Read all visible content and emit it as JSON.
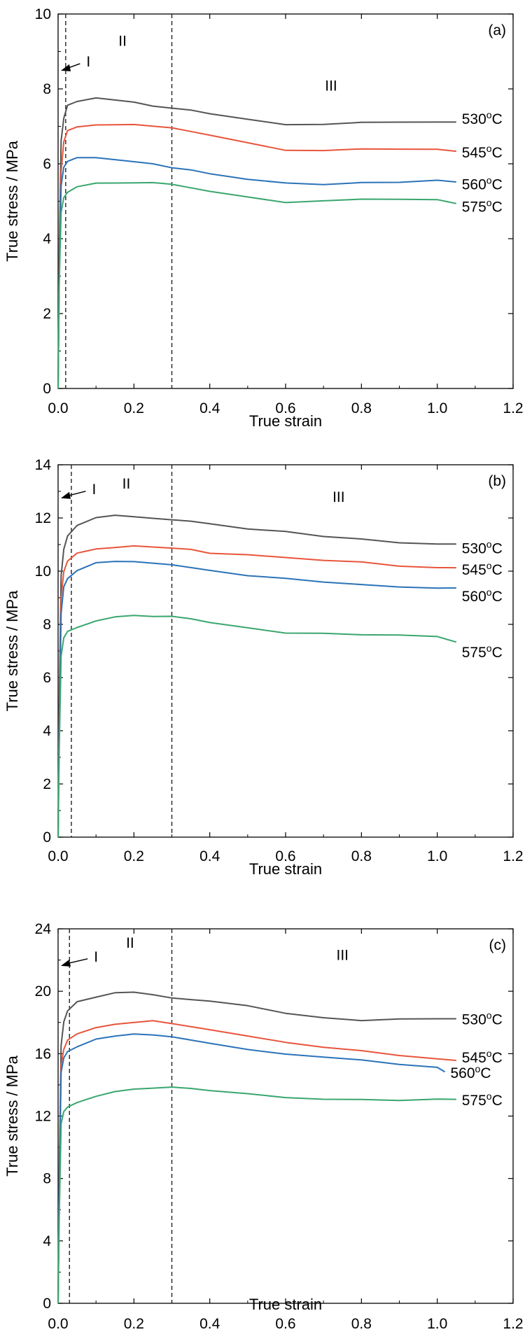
{
  "chart_data": [
    {
      "type": "line",
      "panel_label": "(a)",
      "xlabel": "True strain",
      "ylabel": "True stress / MPa",
      "xlim": [
        0,
        1.2
      ],
      "ylim": [
        0,
        10
      ],
      "xticks": [
        "0.0",
        "0.2",
        "0.4",
        "0.6",
        "0.8",
        "1.0",
        "1.2"
      ],
      "yticks": [
        "0",
        "2",
        "4",
        "6",
        "8",
        "10"
      ],
      "region_lines": [
        0.02,
        0.3
      ],
      "region_labels": [
        {
          "text": "I",
          "x": 0.08,
          "y": 8.6,
          "arrow": true
        },
        {
          "text": "II",
          "x": 0.17,
          "y": 9.15
        },
        {
          "text": "III",
          "x": 0.72,
          "y": 7.95
        }
      ],
      "series": [
        {
          "temp": "530",
          "unit": "C",
          "color": "#555555",
          "x": [
            0,
            0.003,
            0.008,
            0.015,
            0.025,
            0.05,
            0.1,
            0.15,
            0.2,
            0.25,
            0.3,
            0.35,
            0.4,
            0.5,
            0.6,
            0.7,
            0.8,
            0.9,
            1.0,
            1.05
          ],
          "y": [
            0,
            3.5,
            6.6,
            7.2,
            7.55,
            7.65,
            7.75,
            7.7,
            7.65,
            7.55,
            7.5,
            7.45,
            7.35,
            7.2,
            7.05,
            7.05,
            7.1,
            7.1,
            7.1,
            7.1
          ],
          "label_y": 7.2
        },
        {
          "temp": "545",
          "unit": "C",
          "color": "#e8553c",
          "x": [
            0,
            0.003,
            0.008,
            0.015,
            0.025,
            0.05,
            0.1,
            0.15,
            0.2,
            0.25,
            0.3,
            0.35,
            0.4,
            0.5,
            0.6,
            0.7,
            0.8,
            0.9,
            1.0,
            1.05
          ],
          "y": [
            0,
            3.2,
            5.8,
            6.6,
            6.9,
            7.0,
            7.05,
            7.05,
            7.05,
            7.0,
            6.95,
            6.85,
            6.75,
            6.55,
            6.35,
            6.35,
            6.4,
            6.4,
            6.4,
            6.35
          ],
          "label_y": 6.3
        },
        {
          "temp": "560",
          "unit": "C",
          "color": "#2b73b8",
          "x": [
            0,
            0.003,
            0.008,
            0.015,
            0.025,
            0.05,
            0.1,
            0.15,
            0.2,
            0.25,
            0.3,
            0.35,
            0.4,
            0.5,
            0.6,
            0.7,
            0.8,
            0.9,
            1.0,
            1.05
          ],
          "y": [
            0,
            3.0,
            5.4,
            5.9,
            6.05,
            6.15,
            6.15,
            6.1,
            6.05,
            6.0,
            5.9,
            5.85,
            5.75,
            5.6,
            5.5,
            5.45,
            5.5,
            5.5,
            5.55,
            5.5
          ],
          "label_y": 5.45
        },
        {
          "temp": "575",
          "unit": "C",
          "color": "#3aa66e",
          "x": [
            0,
            0.003,
            0.008,
            0.015,
            0.025,
            0.05,
            0.1,
            0.15,
            0.2,
            0.25,
            0.3,
            0.35,
            0.4,
            0.5,
            0.6,
            0.7,
            0.8,
            0.9,
            1.0,
            1.05
          ],
          "y": [
            0,
            2.8,
            4.7,
            5.1,
            5.25,
            5.4,
            5.5,
            5.5,
            5.5,
            5.5,
            5.45,
            5.35,
            5.25,
            5.1,
            4.95,
            5.0,
            5.05,
            5.05,
            5.05,
            4.95
          ],
          "label_y": 4.85
        }
      ]
    },
    {
      "type": "line",
      "panel_label": "(b)",
      "xlabel": "True strain",
      "ylabel": "True stress / MPa",
      "xlim": [
        0,
        1.2
      ],
      "ylim": [
        0,
        14
      ],
      "xticks": [
        "0.0",
        "0.2",
        "0.4",
        "0.6",
        "0.8",
        "1.0",
        "1.2"
      ],
      "yticks": [
        "0",
        "2",
        "4",
        "6",
        "8",
        "10",
        "12",
        "14"
      ],
      "region_lines": [
        0.035,
        0.3
      ],
      "region_labels": [
        {
          "text": "I",
          "x": 0.095,
          "y": 12.9,
          "arrow": true
        },
        {
          "text": "II",
          "x": 0.18,
          "y": 13.1
        },
        {
          "text": "III",
          "x": 0.74,
          "y": 12.6
        }
      ],
      "series": [
        {
          "temp": "530",
          "unit": "C",
          "color": "#555555",
          "x": [
            0,
            0.003,
            0.008,
            0.015,
            0.025,
            0.05,
            0.1,
            0.15,
            0.2,
            0.25,
            0.3,
            0.35,
            0.4,
            0.5,
            0.6,
            0.7,
            0.8,
            0.9,
            1.0,
            1.05
          ],
          "y": [
            0,
            5.0,
            9.8,
            10.8,
            11.3,
            11.7,
            12.0,
            12.1,
            12.05,
            12.0,
            11.95,
            11.9,
            11.8,
            11.6,
            11.5,
            11.3,
            11.2,
            11.05,
            11.0,
            11.0
          ],
          "label_y": 10.85
        },
        {
          "temp": "545",
          "unit": "C",
          "color": "#e8553c",
          "x": [
            0,
            0.003,
            0.008,
            0.015,
            0.025,
            0.05,
            0.1,
            0.15,
            0.2,
            0.25,
            0.3,
            0.35,
            0.4,
            0.5,
            0.6,
            0.7,
            0.8,
            0.9,
            1.0,
            1.05
          ],
          "y": [
            0,
            4.5,
            9.0,
            10.0,
            10.4,
            10.7,
            10.85,
            10.9,
            10.95,
            10.9,
            10.85,
            10.8,
            10.65,
            10.6,
            10.5,
            10.4,
            10.35,
            10.2,
            10.15,
            10.15
          ],
          "label_y": 10.05
        },
        {
          "temp": "560",
          "unit": "C",
          "color": "#2b73b8",
          "x": [
            0,
            0.003,
            0.008,
            0.015,
            0.025,
            0.05,
            0.1,
            0.15,
            0.2,
            0.25,
            0.3,
            0.35,
            0.4,
            0.5,
            0.6,
            0.7,
            0.8,
            0.9,
            1.0,
            1.05
          ],
          "y": [
            0,
            4.0,
            8.4,
            9.4,
            9.7,
            10.0,
            10.3,
            10.35,
            10.35,
            10.3,
            10.25,
            10.15,
            10.05,
            9.85,
            9.75,
            9.6,
            9.5,
            9.4,
            9.35,
            9.35
          ],
          "label_y": 9.05
        },
        {
          "temp": "575",
          "unit": "C",
          "color": "#3aa66e",
          "x": [
            0,
            0.003,
            0.008,
            0.015,
            0.025,
            0.05,
            0.1,
            0.15,
            0.2,
            0.25,
            0.3,
            0.35,
            0.4,
            0.5,
            0.6,
            0.7,
            0.8,
            0.9,
            1.0,
            1.05
          ],
          "y": [
            0,
            3.3,
            6.8,
            7.5,
            7.75,
            7.9,
            8.15,
            8.3,
            8.35,
            8.3,
            8.3,
            8.2,
            8.05,
            7.85,
            7.65,
            7.65,
            7.6,
            7.6,
            7.55,
            7.35
          ],
          "label_y": 6.95
        }
      ]
    },
    {
      "type": "line",
      "panel_label": "(c)",
      "xlabel": "True strain",
      "ylabel": "True stress / MPa",
      "xlim": [
        0,
        1.2
      ],
      "ylim": [
        0,
        24
      ],
      "xticks": [
        "0.0",
        "0.2",
        "0.4",
        "0.6",
        "0.8",
        "1.0",
        "1.2"
      ],
      "yticks": [
        "0",
        "4",
        "8",
        "12",
        "16",
        "20",
        "24"
      ],
      "region_lines": [
        0.03,
        0.3
      ],
      "region_labels": [
        {
          "text": "I",
          "x": 0.1,
          "y": 21.9,
          "arrow": true
        },
        {
          "text": "II",
          "x": 0.19,
          "y": 22.8
        },
        {
          "text": "III",
          "x": 0.75,
          "y": 22.0
        }
      ],
      "series": [
        {
          "temp": "530",
          "unit": "C",
          "color": "#555555",
          "x": [
            0,
            0.003,
            0.008,
            0.015,
            0.025,
            0.05,
            0.1,
            0.15,
            0.2,
            0.25,
            0.3,
            0.35,
            0.4,
            0.5,
            0.6,
            0.7,
            0.8,
            0.9,
            1.0,
            1.05
          ],
          "y": [
            0,
            8.0,
            16.5,
            18.0,
            18.7,
            19.3,
            19.6,
            19.9,
            19.95,
            19.8,
            19.6,
            19.5,
            19.4,
            19.1,
            18.6,
            18.3,
            18.1,
            18.2,
            18.2,
            18.2
          ],
          "label_y": 18.2
        },
        {
          "temp": "545",
          "unit": "C",
          "color": "#e8553c",
          "x": [
            0,
            0.003,
            0.008,
            0.015,
            0.025,
            0.05,
            0.1,
            0.15,
            0.2,
            0.25,
            0.3,
            0.35,
            0.4,
            0.5,
            0.6,
            0.7,
            0.8,
            0.9,
            1.0,
            1.05
          ],
          "y": [
            0,
            7.5,
            15.3,
            16.3,
            16.9,
            17.3,
            17.7,
            17.9,
            18.0,
            18.1,
            17.9,
            17.7,
            17.5,
            17.1,
            16.7,
            16.4,
            16.2,
            15.9,
            15.7,
            15.6
          ],
          "label_y": 15.75
        },
        {
          "temp": "560",
          "unit": "C",
          "color": "#2b73b8",
          "x": [
            0,
            0.003,
            0.008,
            0.015,
            0.025,
            0.05,
            0.1,
            0.15,
            0.2,
            0.25,
            0.3,
            0.35,
            0.4,
            0.5,
            0.6,
            0.7,
            0.8,
            0.9,
            1.0,
            1.02
          ],
          "y": [
            0,
            7.2,
            14.8,
            15.7,
            16.1,
            16.4,
            16.9,
            17.1,
            17.25,
            17.2,
            17.1,
            16.9,
            16.7,
            16.3,
            16.0,
            15.8,
            15.6,
            15.3,
            15.1,
            14.8
          ],
          "label_y": 14.75
        },
        {
          "temp": "575",
          "unit": "C",
          "color": "#3aa66e",
          "x": [
            0,
            0.003,
            0.008,
            0.015,
            0.025,
            0.05,
            0.1,
            0.15,
            0.2,
            0.25,
            0.3,
            0.35,
            0.4,
            0.5,
            0.6,
            0.7,
            0.8,
            0.9,
            1.0,
            1.05
          ],
          "y": [
            0,
            5.5,
            11.5,
            12.3,
            12.6,
            12.9,
            13.3,
            13.6,
            13.75,
            13.8,
            13.85,
            13.75,
            13.6,
            13.4,
            13.15,
            13.05,
            13.05,
            13.0,
            13.1,
            13.1
          ],
          "label_y": 13.0
        }
      ]
    }
  ]
}
